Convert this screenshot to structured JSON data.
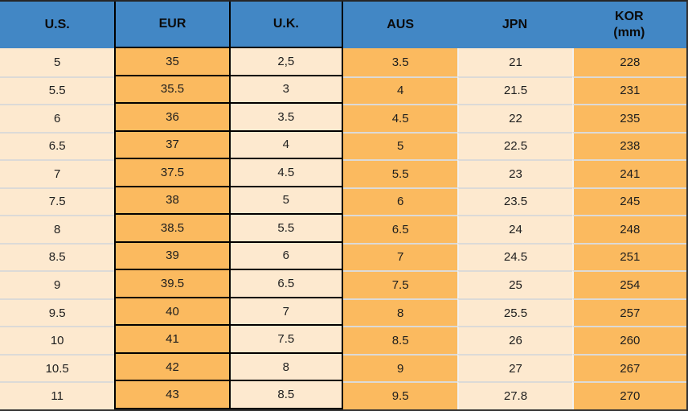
{
  "header": {
    "us": "U.S.",
    "eur": "EUR",
    "uk": "U.K.",
    "aus": "AUS",
    "jpn": "JPN",
    "kor": "KOR",
    "kor_sub": "(mm)"
  },
  "chart_data": {
    "type": "table",
    "title": "Shoe size conversion chart",
    "columns": [
      "U.S.",
      "EUR",
      "U.K.",
      "AUS",
      "JPN",
      "KOR (mm)"
    ],
    "rows": [
      [
        "5",
        "35",
        "2,5",
        "3.5",
        "21",
        "228"
      ],
      [
        "5.5",
        "35.5",
        "3",
        "4",
        "21.5",
        "231"
      ],
      [
        "6",
        "36",
        "3.5",
        "4.5",
        "22",
        "235"
      ],
      [
        "6.5",
        "37",
        "4",
        "5",
        "22.5",
        "238"
      ],
      [
        "7",
        "37.5",
        "4.5",
        "5.5",
        "23",
        "241"
      ],
      [
        "7.5",
        "38",
        "5",
        "6",
        "23.5",
        "245"
      ],
      [
        "8",
        "38.5",
        "5.5",
        "6.5",
        "24",
        "248"
      ],
      [
        "8.5",
        "39",
        "6",
        "7",
        "24.5",
        "251"
      ],
      [
        "9",
        "39.5",
        "6.5",
        "7.5",
        "25",
        "254"
      ],
      [
        "9.5",
        "40",
        "7",
        "8",
        "25.5",
        "257"
      ],
      [
        "10",
        "41",
        "7.5",
        "8.5",
        "26",
        "260"
      ],
      [
        "10.5",
        "42",
        "8",
        "9",
        "27",
        "267"
      ],
      [
        "11",
        "43",
        "8.5",
        "9.5",
        "27.8",
        "270"
      ]
    ]
  },
  "colors": {
    "header_blue": "#4287C5",
    "header_text": "#0B0B0B",
    "column_orange": "#FBBA5F",
    "column_cream": "#FDE9CF",
    "boxed_cell_border": "#000000",
    "row_separator": "#DCDAD7",
    "column_separator": "#F3F1EE",
    "outer_border": "#333333",
    "body_text": "#1E1E1E"
  }
}
